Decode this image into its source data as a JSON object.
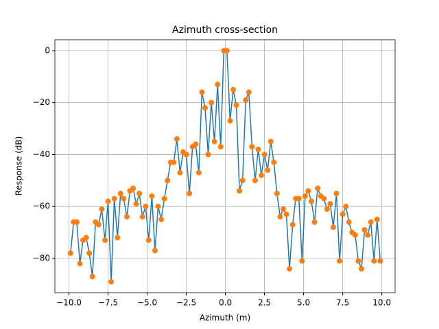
{
  "chart_data": {
    "type": "line",
    "title": "Azimuth cross-section",
    "xlabel": "Azimuth (m)",
    "ylabel": "Response (dB)",
    "x": [
      -9.9,
      -9.7,
      -9.5,
      -9.3,
      -9.1,
      -8.9,
      -8.7,
      -8.5,
      -8.3,
      -8.1,
      -7.9,
      -7.7,
      -7.5,
      -7.3,
      -7.1,
      -6.9,
      -6.7,
      -6.5,
      -6.3,
      -6.1,
      -5.9,
      -5.7,
      -5.5,
      -5.3,
      -5.1,
      -4.9,
      -4.7,
      -4.5,
      -4.3,
      -4.1,
      -3.9,
      -3.7,
      -3.5,
      -3.3,
      -3.1,
      -2.9,
      -2.7,
      -2.5,
      -2.3,
      -2.1,
      -1.9,
      -1.7,
      -1.5,
      -1.3,
      -1.1,
      -0.9,
      -0.7,
      -0.5,
      -0.3,
      -0.1,
      0.1,
      0.3,
      0.5,
      0.7,
      0.9,
      1.1,
      1.3,
      1.5,
      1.7,
      1.9,
      2.1,
      2.3,
      2.5,
      2.7,
      2.9,
      3.1,
      3.3,
      3.5,
      3.7,
      3.9,
      4.1,
      4.3,
      4.5,
      4.7,
      4.9,
      5.1,
      5.3,
      5.5,
      5.7,
      5.9,
      6.1,
      6.3,
      6.5,
      6.7,
      6.9,
      7.1,
      7.3,
      7.5,
      7.7,
      7.9,
      8.1,
      8.3,
      8.5,
      8.7,
      8.9,
      9.1,
      9.3,
      9.5,
      9.7,
      9.9
    ],
    "series": [
      {
        "color": "#1f77b4",
        "marker_color": "#ff7f0e",
        "values": [
          -78,
          -66,
          -66,
          -82,
          -73,
          -72,
          -78,
          -87,
          -66,
          -67,
          -61,
          -73,
          -58,
          -89,
          -57,
          -72,
          -55,
          -57,
          -64,
          -54,
          -53,
          -59,
          -55,
          -64,
          -60,
          -73,
          -56,
          -77,
          -60,
          -65,
          -57,
          -50,
          -43,
          -43,
          -34,
          -47,
          -39,
          -40,
          -55,
          -37,
          -36,
          -47,
          -16,
          -22,
          -40,
          -20,
          -35,
          -13,
          -37,
          0,
          0,
          -27,
          -15,
          -21,
          -54,
          -50,
          -19,
          -16,
          -37,
          -50,
          -38,
          -48,
          -40,
          -46,
          -35,
          -43,
          -55,
          -64,
          -61,
          -63,
          -84,
          -67,
          -57,
          -57,
          -81,
          -56,
          -54,
          -58,
          -66,
          -53,
          -56,
          -57,
          -61,
          -59,
          -68,
          -55,
          -81,
          -63,
          -60,
          -66,
          -70,
          -71,
          -81,
          -84,
          -69,
          -71,
          -66,
          -81,
          -65,
          -81
        ]
      }
    ],
    "xlim": [
      -10.9,
      10.85
    ],
    "ylim": [
      -93.2,
      4.2
    ],
    "xticks": [
      {
        "value": -10,
        "label": "−10.0"
      },
      {
        "value": -7.5,
        "label": "−7.5"
      },
      {
        "value": -5,
        "label": "−5.0"
      },
      {
        "value": -2.5,
        "label": "−2.5"
      },
      {
        "value": 0,
        "label": "0.0"
      },
      {
        "value": 2.5,
        "label": "2.5"
      },
      {
        "value": 5,
        "label": "5.0"
      },
      {
        "value": 7.5,
        "label": "7.5"
      },
      {
        "value": 10,
        "label": "10.0"
      }
    ],
    "yticks": [
      {
        "value": -80,
        "label": "−80"
      },
      {
        "value": -60,
        "label": "−60"
      },
      {
        "value": -40,
        "label": "−40"
      },
      {
        "value": -20,
        "label": "−20"
      },
      0
    ],
    "grid": true
  }
}
